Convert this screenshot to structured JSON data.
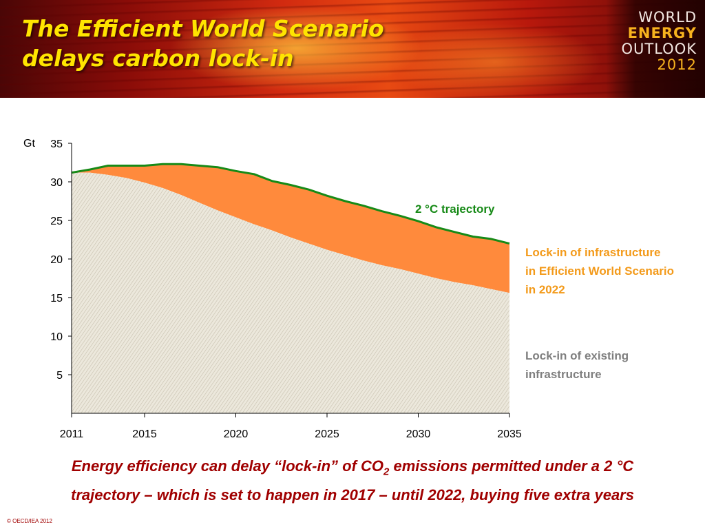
{
  "slide": {
    "title_lines": [
      "The Efficient World Scenario",
      "delays carbon lock-in"
    ],
    "logo_lines": [
      "WORLD",
      "ENERGY",
      "OUTLOOK",
      "2012"
    ],
    "caption": {
      "line1_before_sub": "Energy efficiency can delay “lock-in” of CO",
      "line1_sub": "2",
      "line1_after_sub": " emissions permitted under a 2 °C",
      "line2": "trajectory – which is set to happen in 2017 –  until 2022, buying five extra years"
    },
    "copyright": "© OECD/IEA 2012",
    "colors": {
      "title": "#ffe400",
      "trajectory_line": "#178a17",
      "efficient_area": "#ff8a3c",
      "existing_area": "#e9e4d8",
      "caption": "#a00000"
    }
  },
  "chart_data": {
    "type": "area",
    "ylabel": "Gt",
    "xlim": [
      2011,
      2035
    ],
    "ylim": [
      0,
      35
    ],
    "x_ticks": [
      2011,
      2015,
      2020,
      2025,
      2030,
      2035
    ],
    "y_ticks": [
      5,
      10,
      15,
      20,
      25,
      30,
      35
    ],
    "grid": false,
    "x": [
      2011,
      2012,
      2013,
      2014,
      2015,
      2016,
      2017,
      2018,
      2019,
      2020,
      2021,
      2022,
      2023,
      2024,
      2025,
      2026,
      2027,
      2028,
      2029,
      2030,
      2031,
      2032,
      2033,
      2034,
      2035
    ],
    "series": [
      {
        "name": "Lock-in of existing infrastructure",
        "label_lines": [
          "Lock-in of existing",
          "infrastructure"
        ],
        "values": [
          31.2,
          31.2,
          30.9,
          30.5,
          29.9,
          29.2,
          28.3,
          27.3,
          26.3,
          25.4,
          24.5,
          23.7,
          22.8,
          22.0,
          21.2,
          20.5,
          19.8,
          19.2,
          18.7,
          18.1,
          17.5,
          17.0,
          16.6,
          16.1,
          15.6
        ]
      },
      {
        "name": "Lock-in of infrastructure in Efficient World Scenario in 2022",
        "label_lines": [
          "Lock-in of infrastructure",
          "in Efficient World Scenario",
          "in 2022"
        ],
        "values": [
          31.2,
          31.6,
          32.1,
          32.1,
          32.1,
          32.3,
          32.3,
          32.1,
          31.9,
          31.4,
          31.0,
          30.1,
          29.6,
          29.0,
          28.2,
          27.5,
          26.9,
          26.2,
          25.6,
          24.9,
          24.1,
          23.5,
          22.9,
          22.6,
          22.0
        ]
      },
      {
        "name": "2 °C trajectory",
        "label_lines": [
          "2 °C trajectory"
        ],
        "values": [
          31.2,
          31.6,
          32.1,
          32.1,
          32.1,
          32.3,
          32.3,
          32.1,
          31.9,
          31.4,
          31.0,
          30.1,
          29.6,
          29.0,
          28.2,
          27.5,
          26.9,
          26.2,
          25.6,
          24.9,
          24.1,
          23.5,
          22.9,
          22.6,
          22.0
        ]
      }
    ]
  }
}
